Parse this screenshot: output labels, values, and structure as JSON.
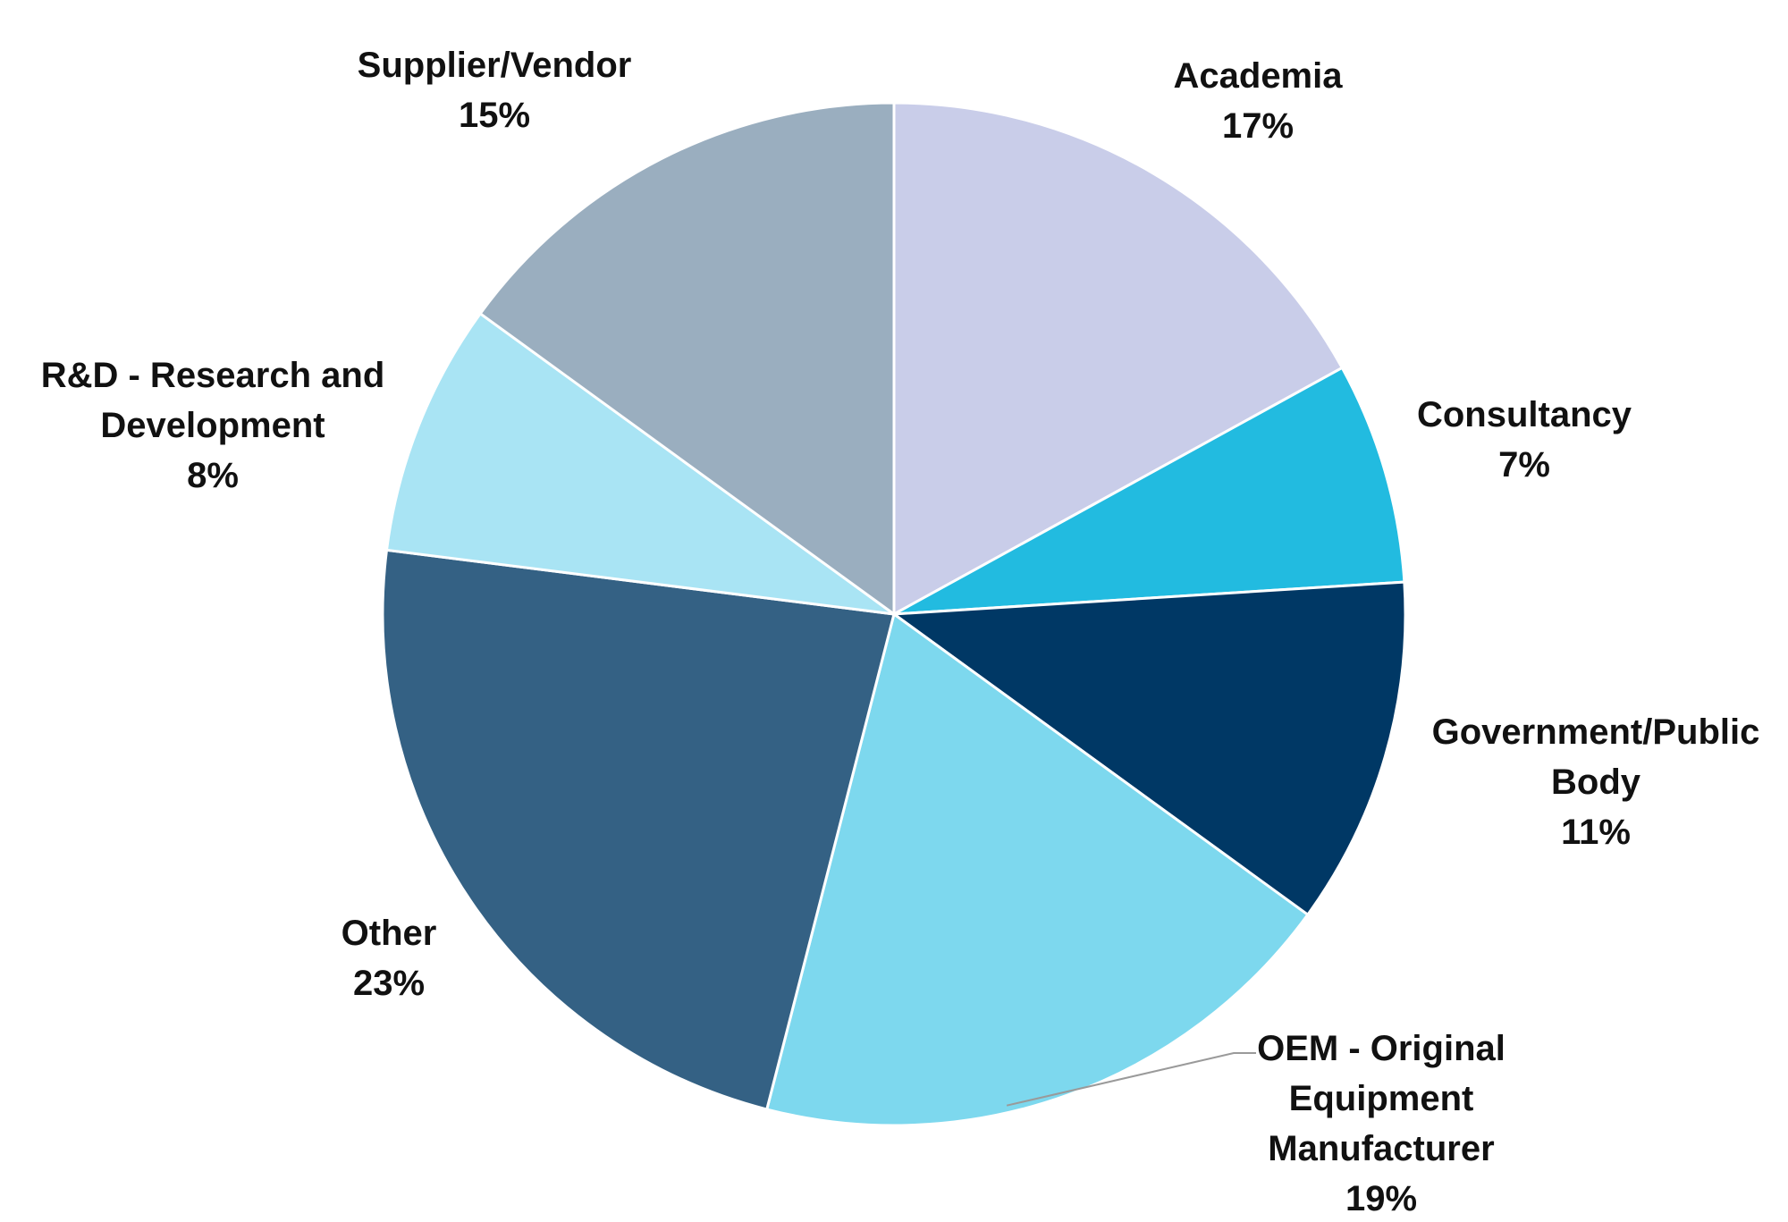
{
  "chart_data": {
    "type": "pie",
    "title": "",
    "start": "12 o'clock",
    "direction": "clockwise",
    "legend": "none (data labels on chart)",
    "slices": [
      {
        "label": [
          "Academia"
        ],
        "percent_label": "17%",
        "value": 17,
        "color": "#c9cde9"
      },
      {
        "label": [
          "Consultancy"
        ],
        "percent_label": "7%",
        "value": 7,
        "color": "#22bbe0"
      },
      {
        "label": [
          "Government/Public",
          "Body"
        ],
        "percent_label": "11%",
        "value": 11,
        "color": "#003865"
      },
      {
        "label": [
          "OEM - Original",
          "Equipment",
          "Manufacturer"
        ],
        "percent_label": "19%",
        "value": 19,
        "color": "#7dd8ee"
      },
      {
        "label": [
          "Other"
        ],
        "percent_label": "23%",
        "value": 23,
        "color": "#346184"
      },
      {
        "label": [
          "R&D - Research and",
          "Development"
        ],
        "percent_label": "8%",
        "value": 8,
        "color": "#a9e4f4"
      },
      {
        "label": [
          "Supplier/Vendor"
        ],
        "percent_label": "15%",
        "value": 15,
        "color": "#9aaebf"
      }
    ]
  }
}
